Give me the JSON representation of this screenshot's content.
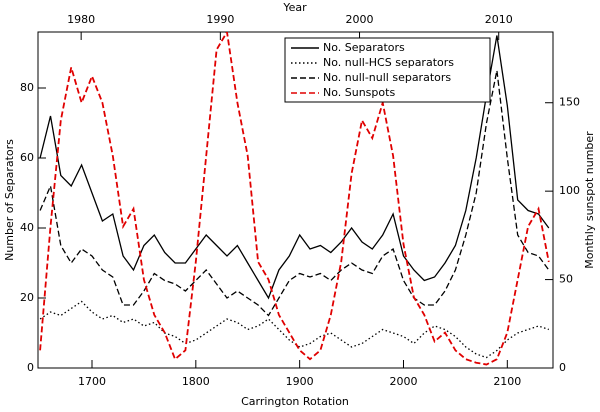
{
  "chart_data": {
    "type": "line",
    "xlabel": "Carrington Rotation",
    "x2label": "Year",
    "ylabel": "Number of Separators",
    "y2label": "Monthly sunspot number",
    "xlim": [
      1648,
      2144
    ],
    "xticks": [
      1700,
      1800,
      1900,
      2000,
      2100
    ],
    "x2lim": [
      1976.9,
      2013.9
    ],
    "x2ticks": [
      1980,
      1990,
      2000,
      2010
    ],
    "ylim": [
      0,
      96
    ],
    "yticks": [
      0,
      20,
      40,
      60,
      80
    ],
    "y2lim": [
      0,
      190
    ],
    "y2ticks": [
      0,
      50,
      100,
      150
    ],
    "legend": "upper right",
    "x": [
      1650,
      1660,
      1670,
      1680,
      1690,
      1700,
      1710,
      1720,
      1730,
      1740,
      1750,
      1760,
      1770,
      1780,
      1790,
      1800,
      1810,
      1820,
      1830,
      1840,
      1850,
      1860,
      1870,
      1880,
      1890,
      1900,
      1910,
      1920,
      1930,
      1940,
      1950,
      1960,
      1970,
      1980,
      1990,
      2000,
      2010,
      2020,
      2030,
      2040,
      2050,
      2060,
      2070,
      2080,
      2090,
      2100,
      2110,
      2120,
      2130,
      2140
    ],
    "series": [
      {
        "name": "No. Separators",
        "color": "#000000",
        "style": "solid",
        "values": [
          60,
          72,
          55,
          52,
          58,
          50,
          42,
          44,
          32,
          28,
          35,
          38,
          33,
          30,
          30,
          34,
          38,
          35,
          32,
          35,
          30,
          25,
          20,
          28,
          32,
          38,
          34,
          35,
          33,
          36,
          40,
          36,
          34,
          38,
          44,
          32,
          28,
          25,
          26,
          30,
          35,
          45,
          60,
          78,
          95,
          75,
          48,
          45,
          44,
          40
        ]
      },
      {
        "name": "No. null-HCS separators",
        "color": "#000000",
        "style": "dotted",
        "values": [
          14,
          16,
          15,
          17,
          19,
          16,
          14,
          15,
          13,
          14,
          12,
          13,
          10,
          9,
          7,
          8,
          10,
          12,
          14,
          13,
          11,
          12,
          14,
          11,
          8,
          6,
          7,
          9,
          10,
          8,
          6,
          7,
          9,
          11,
          10,
          9,
          7,
          10,
          12,
          11,
          9,
          6,
          4,
          3,
          5,
          8,
          10,
          11,
          12,
          11
        ]
      },
      {
        "name": "No. null-null separators",
        "color": "#000000",
        "style": "dashed",
        "values": [
          45,
          52,
          35,
          30,
          34,
          32,
          28,
          26,
          18,
          18,
          22,
          27,
          25,
          24,
          22,
          25,
          28,
          24,
          20,
          22,
          20,
          18,
          15,
          20,
          25,
          27,
          26,
          27,
          25,
          28,
          30,
          28,
          27,
          32,
          34,
          25,
          20,
          18,
          18,
          22,
          28,
          38,
          50,
          70,
          85,
          60,
          38,
          33,
          32,
          28
        ]
      },
      {
        "name": "No. Sunspots",
        "color": "#e00000",
        "style": "dashed",
        "axis": "y2",
        "values": [
          10,
          80,
          140,
          170,
          150,
          165,
          150,
          120,
          80,
          90,
          50,
          30,
          20,
          5,
          10,
          60,
          120,
          180,
          190,
          150,
          120,
          60,
          50,
          30,
          20,
          10,
          5,
          10,
          30,
          60,
          110,
          140,
          130,
          150,
          120,
          70,
          40,
          30,
          15,
          20,
          10,
          5,
          3,
          2,
          5,
          20,
          50,
          80,
          90,
          60
        ]
      }
    ]
  }
}
